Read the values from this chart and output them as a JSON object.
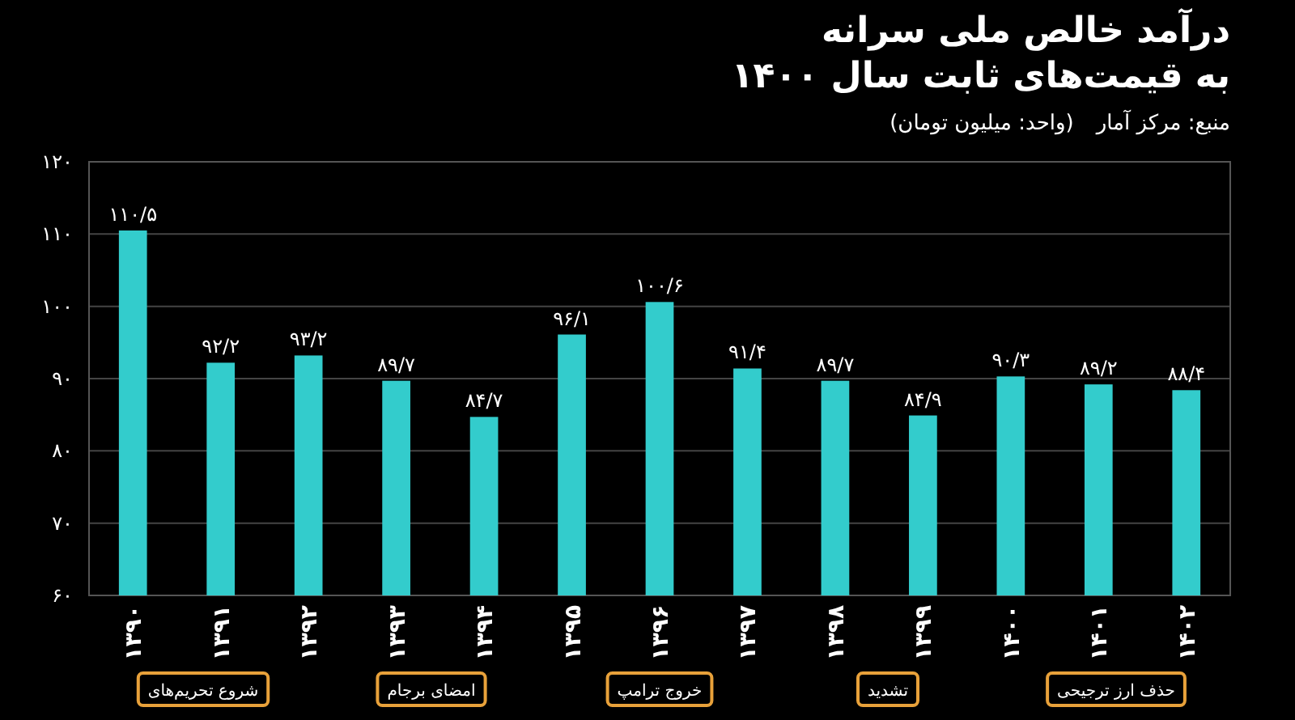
{
  "chart_data": {
    "type": "bar",
    "title": "درآمد خالص ملی سرانه",
    "subtitle": "به قیمت‌های ثابت سال ۱۴۰۰",
    "categories": [
      "۱۳۹۰",
      "۱۳۹۱",
      "۱۳۹۲",
      "۱۳۹۳",
      "۱۳۹۴",
      "۱۳۹۵",
      "۱۳۹۶",
      "۱۳۹۷",
      "۱۳۹۸",
      "۱۳۹۹",
      "۱۴۰۰",
      "۱۴۰۱",
      "۱۴۰۲"
    ],
    "values": [
      110.5,
      92.2,
      93.2,
      89.7,
      84.7,
      96.1,
      100.6,
      91.4,
      89.7,
      84.9,
      90.3,
      89.2,
      88.4
    ],
    "value_labels": [
      "۱۱۰/۵",
      "۹۲/۲",
      "۹۳/۲",
      "۸۹/۷",
      "۸۴/۷",
      "۹۶/۱",
      "۱۰۰/۶",
      "۹۱/۴",
      "۸۹/۷",
      "۸۴/۹",
      "۹۰/۳",
      "۸۹/۲",
      "۸۸/۴"
    ],
    "color": "#33cccc",
    "ylim": [
      60,
      120
    ],
    "yticks": [
      {
        "value": 60,
        "label": "۶۰"
      },
      {
        "value": 70,
        "label": "۷۰"
      },
      {
        "value": 80,
        "label": "۸۰"
      },
      {
        "value": 90,
        "label": "۹۰"
      },
      {
        "value": 100,
        "label": "۱۰۰"
      },
      {
        "value": 110,
        "label": "۱۱۰"
      },
      {
        "value": 120,
        "label": "۱۲۰"
      }
    ],
    "grid": "y",
    "annotations": [
      "منبع: مرکز آمار",
      "(واحد: میلیون تومان)",
      "شروع تحریم‌های",
      "امضای برجام",
      "خروج ترامپ",
      "تشدید",
      "حذف ارز ترجیحی"
    ]
  }
}
